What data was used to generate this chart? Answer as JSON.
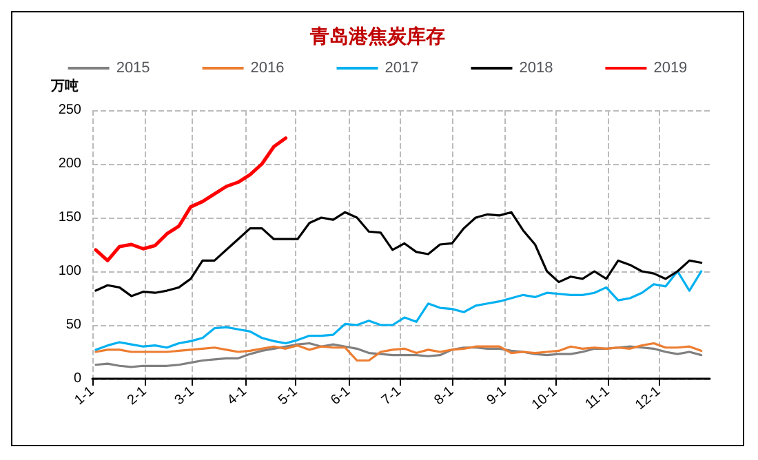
{
  "chart_data": {
    "type": "line",
    "title": "青岛港焦炭库存",
    "ylabel": "万吨",
    "x": [
      "--01-03",
      "--01-10",
      "--01-17",
      "--01-24",
      "--01-31",
      "--02-07",
      "--02-14",
      "--02-21",
      "--02-28",
      "--03-07",
      "--03-14",
      "--03-21",
      "--03-28",
      "--04-04",
      "--04-11",
      "--04-18",
      "--04-25",
      "--05-02",
      "--05-09",
      "--05-16",
      "--05-23",
      "--05-30",
      "--06-06",
      "--06-13",
      "--06-20",
      "--06-27",
      "--07-04",
      "--07-11",
      "--07-18",
      "--07-25",
      "--08-01",
      "--08-08",
      "--08-15",
      "--08-22",
      "--08-29",
      "--09-05",
      "--09-12",
      "--09-19",
      "--09-26",
      "--10-03",
      "--10-10",
      "--10-17",
      "--10-24",
      "--10-31",
      "--11-07",
      "--11-14",
      "--11-21",
      "--11-28",
      "--12-05",
      "--12-12",
      "--12-19",
      "--12-26"
    ],
    "series": [
      {
        "name": "2015",
        "color": "#808080",
        "values": [
          13,
          14,
          12,
          11,
          12,
          12,
          12,
          13,
          15,
          17,
          18,
          19,
          19,
          23,
          26,
          28,
          30,
          32,
          33,
          30,
          32,
          30,
          28,
          24,
          23,
          22,
          22,
          22,
          21,
          22,
          27,
          29,
          29,
          28,
          28,
          26,
          25,
          23,
          22,
          23,
          23,
          25,
          28,
          28,
          29,
          30,
          29,
          28,
          25,
          23,
          25,
          22
        ]
      },
      {
        "name": "2016",
        "color": "#ed7d31",
        "values": [
          25,
          27,
          27,
          25,
          25,
          25,
          25,
          26,
          27,
          28,
          29,
          27,
          25,
          26,
          28,
          30,
          28,
          31,
          27,
          30,
          29,
          29,
          17,
          17,
          25,
          27,
          28,
          24,
          27,
          25,
          27,
          28,
          30,
          30,
          30,
          24,
          25,
          24,
          25,
          26,
          30,
          28,
          29,
          28,
          29,
          28,
          31,
          33,
          29,
          29,
          30,
          26
        ]
      },
      {
        "name": "2017",
        "color": "#00b0f0",
        "values": [
          27,
          31,
          34,
          32,
          30,
          31,
          29,
          33,
          35,
          38,
          47,
          48,
          46,
          44,
          38,
          35,
          33,
          36,
          40,
          40,
          41,
          51,
          50,
          54,
          50,
          50,
          57,
          53,
          70,
          66,
          65,
          62,
          68,
          70,
          72,
          75,
          78,
          76,
          80,
          79,
          78,
          78,
          80,
          85,
          73,
          75,
          80,
          88,
          86,
          100,
          82,
          100
        ]
      },
      {
        "name": "2018",
        "color": "#000000",
        "values": [
          82,
          87,
          85,
          77,
          81,
          80,
          82,
          85,
          93,
          110,
          110,
          120,
          130,
          140,
          140,
          130,
          130,
          130,
          145,
          150,
          148,
          155,
          150,
          137,
          136,
          120,
          126,
          118,
          116,
          125,
          126,
          140,
          150,
          153,
          152,
          155,
          138,
          125,
          100,
          90,
          95,
          93,
          100,
          93,
          110,
          106,
          100,
          98,
          93,
          100,
          110,
          108
        ]
      },
      {
        "name": "2019",
        "color": "#ff0000",
        "x": [
          "--01-03",
          "--01-10",
          "--01-17",
          "--01-24",
          "--01-31",
          "--02-07",
          "--02-14",
          "--02-21",
          "--02-28",
          "--03-07",
          "--03-14",
          "--03-21",
          "--03-28",
          "--04-04",
          "--04-11",
          "--04-18",
          "--04-25"
        ],
        "values": [
          120,
          110,
          123,
          125,
          121,
          124,
          135,
          142,
          160,
          165,
          172,
          179,
          183,
          190,
          200,
          216,
          224
        ]
      }
    ],
    "xlim": [
      "--01-01",
      "--12-31"
    ],
    "xticks": [
      {
        "value": "--01-01",
        "label": "1-1"
      },
      {
        "value": "--02-01",
        "label": "2-1"
      },
      {
        "value": "--03-01",
        "label": "3-1"
      },
      {
        "value": "--04-01",
        "label": "4-1"
      },
      {
        "value": "--05-01",
        "label": "5-1"
      },
      {
        "value": "--06-01",
        "label": "6-1"
      },
      {
        "value": "--07-01",
        "label": "7-1"
      },
      {
        "value": "--08-01",
        "label": "8-1"
      },
      {
        "value": "--09-01",
        "label": "9-1"
      },
      {
        "value": "--10-01",
        "label": "10-1"
      },
      {
        "value": "--11-01",
        "label": "11-1"
      },
      {
        "value": "--12-01",
        "label": "12-1"
      }
    ],
    "ylim": [
      0,
      250
    ],
    "yticks": [
      0,
      50,
      100,
      150,
      200,
      250
    ],
    "grid": true,
    "legend": "top",
    "marker": "none",
    "line_style": "solid"
  }
}
